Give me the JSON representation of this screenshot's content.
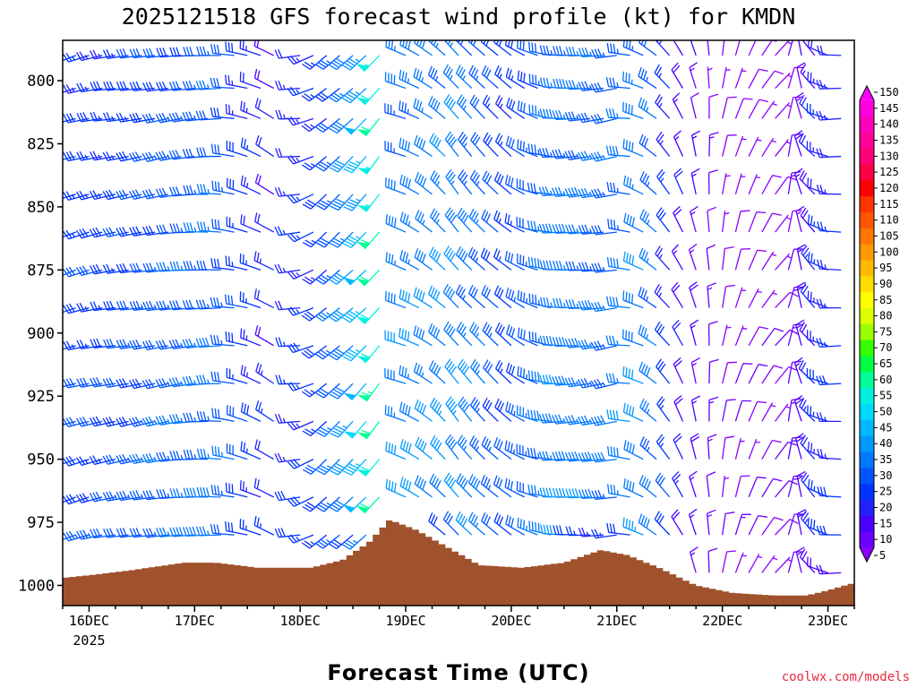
{
  "chart_data": {
    "type": "wind-barb-profile",
    "title": "2025121518 GFS forecast wind profile (kt) for KMDN",
    "xlabel": "Forecast Time (UTC)",
    "credit": "coolwx.com/models",
    "credit_color": "#e8283c",
    "x_range_days": [
      15.75,
      23.25
    ],
    "x_ticks": [
      {
        "day": 16,
        "label": "16DEC",
        "sublabel": "2025"
      },
      {
        "day": 17,
        "label": "17DEC",
        "sublabel": ""
      },
      {
        "day": 18,
        "label": "18DEC",
        "sublabel": ""
      },
      {
        "day": 19,
        "label": "19DEC",
        "sublabel": ""
      },
      {
        "day": 20,
        "label": "20DEC",
        "sublabel": ""
      },
      {
        "day": 21,
        "label": "21DEC",
        "sublabel": ""
      },
      {
        "day": 22,
        "label": "22DEC",
        "sublabel": ""
      },
      {
        "day": 23,
        "label": "23DEC",
        "sublabel": ""
      }
    ],
    "y_range_hpa": [
      1008,
      784
    ],
    "y_ticks": [
      {
        "value": 800,
        "label": "800"
      },
      {
        "value": 825,
        "label": "825"
      },
      {
        "value": 850,
        "label": "850"
      },
      {
        "value": 875,
        "label": "875"
      },
      {
        "value": 900,
        "label": "900"
      },
      {
        "value": 925,
        "label": "925"
      },
      {
        "value": 950,
        "label": "950"
      },
      {
        "value": 975,
        "label": "975"
      },
      {
        "value": 1000,
        "label": "1000"
      }
    ],
    "pressure_levels": [
      790,
      803,
      815,
      830,
      845,
      860,
      875,
      890,
      905,
      920,
      935,
      950,
      965,
      980,
      995
    ],
    "time_step_hours": 3,
    "wind_keyframes": [
      {
        "day": 15.75,
        "speed": 30,
        "dir": 250
      },
      {
        "day": 16.25,
        "speed": 28,
        "dir": 260
      },
      {
        "day": 16.75,
        "speed": 33,
        "dir": 260
      },
      {
        "day": 17.25,
        "speed": 35,
        "dir": 270
      },
      {
        "day": 17.75,
        "speed": 22,
        "dir": 300
      },
      {
        "day": 18.25,
        "speed": 27,
        "dir": 230
      },
      {
        "day": 18.6,
        "speed": 45,
        "dir": 225
      },
      {
        "day": 18.75,
        "speed": 60,
        "dir": 220
      },
      {
        "day": 19.0,
        "speed": 38,
        "dir": 290
      },
      {
        "day": 19.5,
        "speed": 40,
        "dir": 320
      },
      {
        "day": 20.0,
        "speed": 28,
        "dir": 310
      },
      {
        "day": 20.5,
        "speed": 38,
        "dir": 270
      },
      {
        "day": 21.0,
        "speed": 35,
        "dir": 260
      },
      {
        "day": 21.3,
        "speed": 40,
        "dir": 300
      },
      {
        "day": 21.6,
        "speed": 20,
        "dir": 330
      },
      {
        "day": 22.0,
        "speed": 8,
        "dir": 10
      },
      {
        "day": 22.5,
        "speed": 8,
        "dir": 40
      },
      {
        "day": 23.0,
        "speed": 25,
        "dir": 290
      },
      {
        "day": 23.25,
        "speed": 25,
        "dir": 250
      }
    ],
    "missing_times_days": [
      17.875,
      18.875
    ],
    "terrain_color": "#a0522d",
    "terrain_surface_pressure": [
      {
        "day": 15.75,
        "hpa": 997
      },
      {
        "day": 16.0,
        "hpa": 996
      },
      {
        "day": 16.4,
        "hpa": 994
      },
      {
        "day": 16.9,
        "hpa": 991
      },
      {
        "day": 17.2,
        "hpa": 991
      },
      {
        "day": 17.6,
        "hpa": 993
      },
      {
        "day": 18.1,
        "hpa": 993
      },
      {
        "day": 18.4,
        "hpa": 990
      },
      {
        "day": 18.65,
        "hpa": 983
      },
      {
        "day": 18.85,
        "hpa": 974
      },
      {
        "day": 19.1,
        "hpa": 978
      },
      {
        "day": 19.4,
        "hpa": 985
      },
      {
        "day": 19.7,
        "hpa": 992
      },
      {
        "day": 20.1,
        "hpa": 993
      },
      {
        "day": 20.5,
        "hpa": 991
      },
      {
        "day": 20.85,
        "hpa": 986
      },
      {
        "day": 21.1,
        "hpa": 988
      },
      {
        "day": 21.4,
        "hpa": 993
      },
      {
        "day": 21.75,
        "hpa": 1000
      },
      {
        "day": 22.1,
        "hpa": 1003
      },
      {
        "day": 22.5,
        "hpa": 1004
      },
      {
        "day": 22.8,
        "hpa": 1004
      },
      {
        "day": 23.0,
        "hpa": 1002
      },
      {
        "day": 23.25,
        "hpa": 999
      }
    ],
    "colorbar": {
      "unit": "kt",
      "levels": [
        5,
        10,
        15,
        20,
        25,
        30,
        35,
        40,
        45,
        50,
        55,
        60,
        65,
        70,
        75,
        80,
        85,
        90,
        95,
        100,
        105,
        110,
        115,
        120,
        125,
        130,
        135,
        140,
        145,
        150
      ],
      "labels": [
        "5",
        "10",
        "15",
        "20",
        "25",
        "30",
        "35",
        "40",
        "45",
        "50",
        "55",
        "60",
        "65",
        "70",
        "75",
        "80",
        "85",
        "90",
        "95",
        "100",
        "105",
        "110",
        "115",
        "120",
        "125",
        "130",
        "135",
        "140",
        "145",
        "150"
      ],
      "colors": [
        "#8a00ff",
        "#6a00ff",
        "#4a00ff",
        "#2222ff",
        "#0033ff",
        "#0055ff",
        "#0077ff",
        "#0099ff",
        "#00b8ff",
        "#00d8ff",
        "#00f0e0",
        "#00ff99",
        "#00ff44",
        "#33ff00",
        "#99ff00",
        "#ddff00",
        "#ffff00",
        "#ffdd00",
        "#ffbb00",
        "#ff9900",
        "#ff7700",
        "#ff5500",
        "#ff3300",
        "#ff0000",
        "#ff0044",
        "#ff0077",
        "#ff0099",
        "#ff00bb",
        "#ff00dd",
        "#ff00ff"
      ]
    }
  }
}
